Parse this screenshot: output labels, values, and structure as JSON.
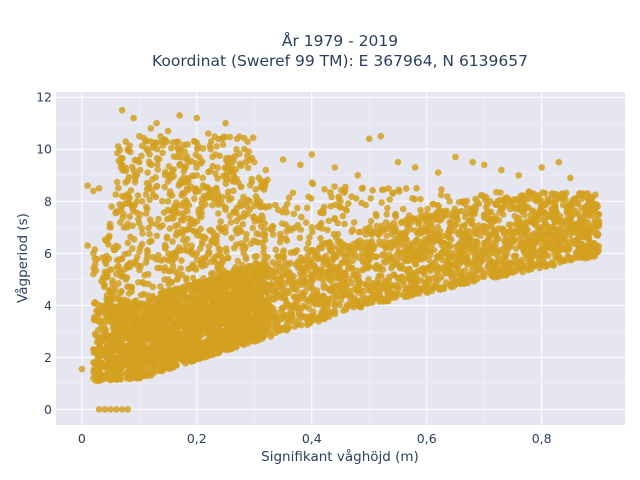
{
  "chart_data": {
    "type": "scatter",
    "title_lines": [
      "År 1979 - 2019",
      "Koordinat (Sweref 99 TM): E 367964, N 6139657"
    ],
    "xlabel": "Signifikant våghöjd (m)",
    "ylabel": "Vågperiod (s)",
    "xlim": [
      -0.045,
      0.945
    ],
    "ylim": [
      -0.6,
      12.2
    ],
    "x_ticks": [
      0,
      0.2,
      0.4,
      0.6,
      0.8
    ],
    "x_tick_labels": [
      "0",
      "0,2",
      "0,4",
      "0,6",
      "0,8"
    ],
    "y_ticks": [
      0,
      2,
      4,
      6,
      8,
      10,
      12
    ],
    "y_tick_labels": [
      "0",
      "2",
      "4",
      "6",
      "8",
      "10",
      "12"
    ],
    "grid": true,
    "legend": "none",
    "marker_color": "#d4a020",
    "background_color": "#e5e6f0",
    "points": [
      [
        0.0,
        1.55
      ],
      [
        0.02,
        1.2
      ],
      [
        0.02,
        1.8
      ],
      [
        0.02,
        2.3
      ],
      [
        0.03,
        0.0
      ],
      [
        0.04,
        0.0
      ],
      [
        0.05,
        0.0
      ],
      [
        0.06,
        0.0
      ],
      [
        0.07,
        0.0
      ],
      [
        0.08,
        0.0
      ],
      [
        0.03,
        1.1
      ],
      [
        0.04,
        1.3
      ],
      [
        0.05,
        1.4
      ],
      [
        0.06,
        1.6
      ],
      [
        0.07,
        1.9
      ],
      [
        0.08,
        2.2
      ],
      [
        0.05,
        2.8
      ],
      [
        0.06,
        3.4
      ],
      [
        0.07,
        4.0
      ],
      [
        0.05,
        4.6
      ],
      [
        0.06,
        5.2
      ],
      [
        0.07,
        5.8
      ],
      [
        0.08,
        6.4
      ],
      [
        0.05,
        7.0
      ],
      [
        0.06,
        7.6
      ],
      [
        0.07,
        8.2
      ],
      [
        0.08,
        8.8
      ],
      [
        0.07,
        9.4
      ],
      [
        0.08,
        10.0
      ],
      [
        0.07,
        11.5
      ],
      [
        0.09,
        11.2
      ],
      [
        0.1,
        10.5
      ],
      [
        0.12,
        10.8
      ],
      [
        0.13,
        11.0
      ],
      [
        0.15,
        10.7
      ],
      [
        0.17,
        11.3
      ],
      [
        0.2,
        11.2
      ],
      [
        0.22,
        10.6
      ],
      [
        0.25,
        11.0
      ],
      [
        0.27,
        10.4
      ],
      [
        0.1,
        1.2
      ],
      [
        0.12,
        1.3
      ],
      [
        0.14,
        1.5
      ],
      [
        0.16,
        1.7
      ],
      [
        0.18,
        1.9
      ],
      [
        0.2,
        2.1
      ],
      [
        0.22,
        2.3
      ],
      [
        0.24,
        2.5
      ],
      [
        0.26,
        2.7
      ],
      [
        0.28,
        2.9
      ],
      [
        0.3,
        3.0
      ],
      [
        0.32,
        3.2
      ],
      [
        0.34,
        3.3
      ],
      [
        0.36,
        3.4
      ],
      [
        0.38,
        3.5
      ],
      [
        0.4,
        3.6
      ],
      [
        0.42,
        3.7
      ],
      [
        0.44,
        3.8
      ],
      [
        0.46,
        3.9
      ],
      [
        0.48,
        4.0
      ],
      [
        0.5,
        4.1
      ],
      [
        0.52,
        4.2
      ],
      [
        0.54,
        4.3
      ],
      [
        0.56,
        4.4
      ],
      [
        0.58,
        4.5
      ],
      [
        0.6,
        4.6
      ],
      [
        0.62,
        4.7
      ],
      [
        0.64,
        4.8
      ],
      [
        0.66,
        4.9
      ],
      [
        0.68,
        5.0
      ],
      [
        0.7,
        5.1
      ],
      [
        0.72,
        5.2
      ],
      [
        0.74,
        5.3
      ],
      [
        0.76,
        5.5
      ],
      [
        0.78,
        5.7
      ],
      [
        0.8,
        5.9
      ],
      [
        0.82,
        6.2
      ],
      [
        0.84,
        6.5
      ],
      [
        0.86,
        6.8
      ],
      [
        0.88,
        7.2
      ],
      [
        0.3,
        9.5
      ],
      [
        0.32,
        9.2
      ],
      [
        0.35,
        9.6
      ],
      [
        0.38,
        9.4
      ],
      [
        0.4,
        9.8
      ],
      [
        0.44,
        9.3
      ],
      [
        0.48,
        9.0
      ],
      [
        0.5,
        10.4
      ],
      [
        0.52,
        10.5
      ],
      [
        0.55,
        9.5
      ],
      [
        0.58,
        9.3
      ],
      [
        0.62,
        9.1
      ],
      [
        0.65,
        9.7
      ],
      [
        0.68,
        9.5
      ],
      [
        0.7,
        9.4
      ],
      [
        0.73,
        9.2
      ],
      [
        0.76,
        9.0
      ],
      [
        0.8,
        9.3
      ],
      [
        0.83,
        9.5
      ],
      [
        0.85,
        8.9
      ],
      [
        0.88,
        8.3
      ],
      [
        0.89,
        7.8
      ],
      [
        0.9,
        7.5
      ],
      [
        0.87,
        8.1
      ],
      [
        0.01,
        8.6
      ],
      [
        0.02,
        8.4
      ],
      [
        0.03,
        8.5
      ],
      [
        0.01,
        6.3
      ],
      [
        0.02,
        6.0
      ],
      [
        0.02,
        5.2
      ],
      [
        0.25,
        4.0
      ],
      [
        0.3,
        5.0
      ],
      [
        0.35,
        6.0
      ],
      [
        0.4,
        7.0
      ],
      [
        0.45,
        8.0
      ],
      [
        0.5,
        5.5
      ],
      [
        0.55,
        6.5
      ],
      [
        0.6,
        7.5
      ],
      [
        0.65,
        6.0
      ],
      [
        0.7,
        7.0
      ],
      [
        0.75,
        6.5
      ],
      [
        0.8,
        7.0
      ],
      [
        0.85,
        7.3
      ],
      [
        0.15,
        5.0
      ],
      [
        0.2,
        6.0
      ],
      [
        0.25,
        7.0
      ],
      [
        0.15,
        8.0
      ],
      [
        0.2,
        9.0
      ],
      [
        0.1,
        9.5
      ],
      [
        0.12,
        3.0
      ]
    ]
  }
}
